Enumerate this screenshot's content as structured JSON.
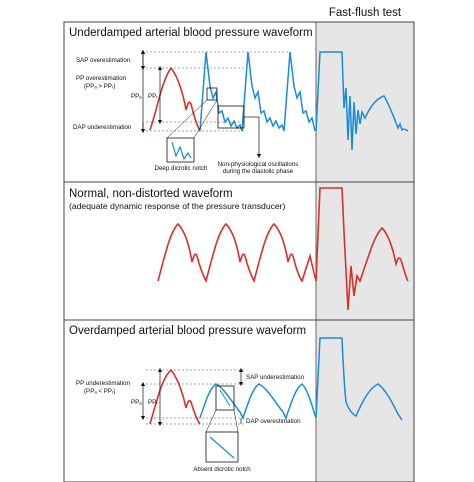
{
  "colors": {
    "measured": "#1a8cd8",
    "reference": "#d8322a",
    "flush_bg": "#e6e6e6",
    "frame": "#444444"
  },
  "header": {
    "flush_title": "Fast-flush test"
  },
  "panels": [
    {
      "id": "underdamped",
      "title": "Underdamped arterial blood pressure waveform",
      "labels": {
        "sap": "SAP overestimation",
        "pp_line1": "PP overestimation",
        "pp_line2": "(PPₐ > PPᵣ)",
        "pp_a": "PPₐ",
        "pp_r": "PPᵣ",
        "dap": "DAP underestimation",
        "notch": "Deep dicrotic notch",
        "osc_line1": "Non-physiological oscillations",
        "osc_line2": "during the diastolic phase"
      }
    },
    {
      "id": "normal",
      "title": "Normal, non-distorted waveform",
      "subtitle": "(adequate dynamic response of the pressure transducer)"
    },
    {
      "id": "overdamped",
      "title": "Overdamped arterial blood pressure waveform",
      "labels": {
        "pp_line1": "PP underestimation",
        "pp_line2": "(PPₐ < PPᵣ)",
        "pp_a": "PPₐ",
        "pp_r": "PPᵣ",
        "sap": "SAP underestimation",
        "dap": "DAP overestimation",
        "notch": "Absent dicrotic notch"
      }
    }
  ]
}
